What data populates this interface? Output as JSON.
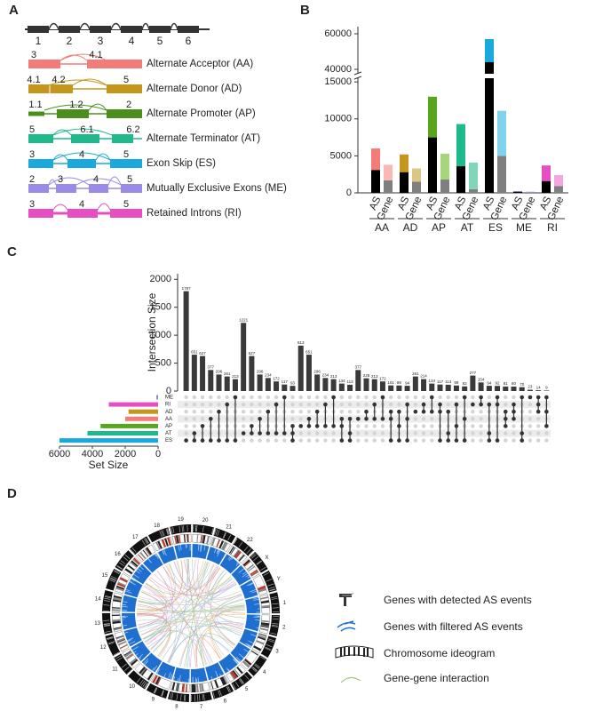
{
  "panels": {
    "a": "A",
    "b": "B",
    "c": "C",
    "d": "D"
  },
  "diagram": {
    "exons": [
      "1",
      "2",
      "3",
      "4",
      "5",
      "6"
    ],
    "events": [
      {
        "label": "Alternate Acceptor (AA)",
        "color": "#f47c78",
        "exons": [
          "3",
          "4.1"
        ]
      },
      {
        "label": "Alternate Donor (AD)",
        "color": "#c4961c",
        "exons": [
          "4.1",
          "4.2",
          "5"
        ]
      },
      {
        "label": "Alternate Promoter (AP)",
        "color": "#4a8f1c",
        "exons": [
          "1.1",
          "1.2",
          "2"
        ]
      },
      {
        "label": "Alternate Terminator (AT)",
        "color": "#20b98c",
        "exons": [
          "5",
          "6.1",
          "6.2"
        ]
      },
      {
        "label": "Exon Skip (ES)",
        "color": "#1aa9dc",
        "exons": [
          "3",
          "4",
          "5"
        ]
      },
      {
        "label": "Mutually Exclusive Exons (ME)",
        "color": "#9a8ce6",
        "exons": [
          "2",
          "3",
          "4",
          "5"
        ]
      },
      {
        "label": "Retained Introns (RI)",
        "color": "#e64fc4",
        "exons": [
          "3",
          "4",
          "5"
        ]
      }
    ]
  },
  "chart_data": [
    {
      "type": "bar",
      "stacked": true,
      "ylim": [
        0,
        15500
      ],
      "yticks": [
        0,
        5000,
        10000,
        15000
      ],
      "ylim_break": [
        37500,
        64000
      ],
      "yticks_break": [
        40000,
        60000
      ],
      "groups": [
        {
          "name": "AA",
          "bars": [
            {
              "label": "AS",
              "segments": [
                {
                  "value": 3100,
                  "color": "#000000"
                },
                {
                  "value": 2900,
                  "color": "#f47c78"
                }
              ]
            },
            {
              "label": "Gene",
              "segments": [
                {
                  "value": 1700,
                  "color": "#7f7f7f"
                },
                {
                  "value": 2100,
                  "color": "#f9b8b4"
                }
              ]
            }
          ]
        },
        {
          "name": "AD",
          "bars": [
            {
              "label": "AS",
              "segments": [
                {
                  "value": 2800,
                  "color": "#000000"
                },
                {
                  "value": 2400,
                  "color": "#c4961c"
                }
              ]
            },
            {
              "label": "Gene",
              "segments": [
                {
                  "value": 1500,
                  "color": "#7f7f7f"
                },
                {
                  "value": 1800,
                  "color": "#dcc684"
                }
              ]
            }
          ]
        },
        {
          "name": "AP",
          "bars": [
            {
              "label": "AS",
              "segments": [
                {
                  "value": 7500,
                  "color": "#000000"
                },
                {
                  "value": 5500,
                  "color": "#5aa51e"
                }
              ]
            },
            {
              "label": "Gene",
              "segments": [
                {
                  "value": 1800,
                  "color": "#7f7f7f"
                },
                {
                  "value": 3500,
                  "color": "#a6d67c"
                }
              ]
            }
          ]
        },
        {
          "name": "AT",
          "bars": [
            {
              "label": "AS",
              "segments": [
                {
                  "value": 3600,
                  "color": "#000000"
                },
                {
                  "value": 5700,
                  "color": "#20b98c"
                }
              ]
            },
            {
              "label": "Gene",
              "segments": [
                {
                  "value": 500,
                  "color": "#7f7f7f"
                },
                {
                  "value": 3600,
                  "color": "#7fd6b8"
                }
              ]
            }
          ]
        },
        {
          "name": "ES",
          "bars": [
            {
              "label": "AS",
              "segments": [
                {
                  "value": 44000,
                  "color": "#000000"
                },
                {
                  "value": 13000,
                  "color": "#1aa9dc"
                }
              ]
            },
            {
              "label": "Gene",
              "segments": [
                {
                  "value": 5000,
                  "color": "#7f7f7f"
                },
                {
                  "value": 6100,
                  "color": "#7fd3ec"
                }
              ]
            }
          ]
        },
        {
          "name": "ME",
          "bars": [
            {
              "label": "AS",
              "segments": [
                {
                  "value": 150,
                  "color": "#000000"
                },
                {
                  "value": 80,
                  "color": "#7b6fd0"
                }
              ]
            },
            {
              "label": "Gene",
              "segments": [
                {
                  "value": 100,
                  "color": "#7f7f7f"
                },
                {
                  "value": 60,
                  "color": "#b4acec"
                }
              ]
            }
          ]
        },
        {
          "name": "RI",
          "bars": [
            {
              "label": "AS",
              "segments": [
                {
                  "value": 1600,
                  "color": "#000000"
                },
                {
                  "value": 2100,
                  "color": "#e64fc4"
                }
              ]
            },
            {
              "label": "Gene",
              "segments": [
                {
                  "value": 900,
                  "color": "#7f7f7f"
                },
                {
                  "value": 1500,
                  "color": "#f5a6e0"
                }
              ]
            }
          ]
        }
      ]
    },
    {
      "type": "upset",
      "ylabel": "Intersection Size",
      "ylim": [
        0,
        2100
      ],
      "yticks": [
        0,
        500,
        1000,
        1500,
        2000
      ],
      "color": "#3a3a3a",
      "values": [
        1787,
        651,
        627,
        377,
        296,
        261,
        213,
        1221,
        627,
        296,
        234,
        172,
        117,
        93,
        813,
        651,
        296,
        234,
        213,
        134,
        113,
        377,
        228,
        213,
        172,
        101,
        99,
        94,
        261,
        214,
        134,
        117,
        113,
        99,
        83,
        277,
        154,
        94,
        92,
        81,
        80,
        70,
        23,
        14,
        9
      ],
      "sets": [
        "ME",
        "RI",
        "AD",
        "AA",
        "AP",
        "AT",
        "ES"
      ],
      "set_colors": [
        "#8a7fe0",
        "#e64fc4",
        "#c4961c",
        "#f47c78",
        "#5aa51e",
        "#20b98c",
        "#1aa9dc"
      ],
      "set_sizes": [
        100,
        3000,
        1800,
        2000,
        3500,
        4300,
        6000
      ],
      "xlabel": "Set Size",
      "xlim": [
        0,
        6000
      ],
      "xticks": [
        6000,
        4000,
        2000,
        0
      ],
      "members": [
        [
          6
        ],
        [
          5,
          6
        ],
        [
          4,
          6
        ],
        [
          3,
          6
        ],
        [
          2,
          6
        ],
        [
          1,
          6
        ],
        [
          0,
          6
        ],
        [
          5
        ],
        [
          4,
          5
        ],
        [
          3,
          5
        ],
        [
          2,
          5
        ],
        [
          1,
          5
        ],
        [
          0,
          5
        ],
        [
          4,
          5,
          6
        ],
        [
          4
        ],
        [
          3,
          4
        ],
        [
          2,
          4
        ],
        [
          1,
          4
        ],
        [
          0,
          4
        ],
        [
          3,
          4,
          6
        ],
        [
          3,
          5,
          6
        ],
        [
          3
        ],
        [
          2,
          3
        ],
        [
          1,
          3
        ],
        [
          0,
          3
        ],
        [
          2,
          3,
          6
        ],
        [
          2,
          4,
          6
        ],
        [
          1,
          3,
          6
        ],
        [
          2
        ],
        [
          1,
          2
        ],
        [
          0,
          2
        ],
        [
          1,
          2,
          6
        ],
        [
          2,
          5,
          6
        ],
        [
          1,
          4,
          6
        ],
        [
          0,
          3,
          6
        ],
        [
          1
        ],
        [
          0,
          1
        ],
        [
          1,
          5,
          6
        ],
        [
          0,
          1,
          6
        ],
        [
          2,
          3,
          4
        ],
        [
          1,
          2,
          3
        ],
        [
          0,
          5,
          6
        ],
        [
          0
        ],
        [
          0,
          1,
          2
        ],
        [
          0,
          2,
          4
        ]
      ]
    }
  ],
  "circos": {
    "chromosomes": [
      "1",
      "2",
      "3",
      "4",
      "5",
      "6",
      "7",
      "8",
      "9",
      "10",
      "11",
      "12",
      "13",
      "14",
      "15",
      "16",
      "17",
      "18",
      "19",
      "20",
      "21",
      "22",
      "X",
      "Y"
    ],
    "legend": [
      "Genes with detected AS events",
      "Genes with filtered AS events",
      "Chromosome ideogram",
      "Gene-gene interaction"
    ]
  }
}
